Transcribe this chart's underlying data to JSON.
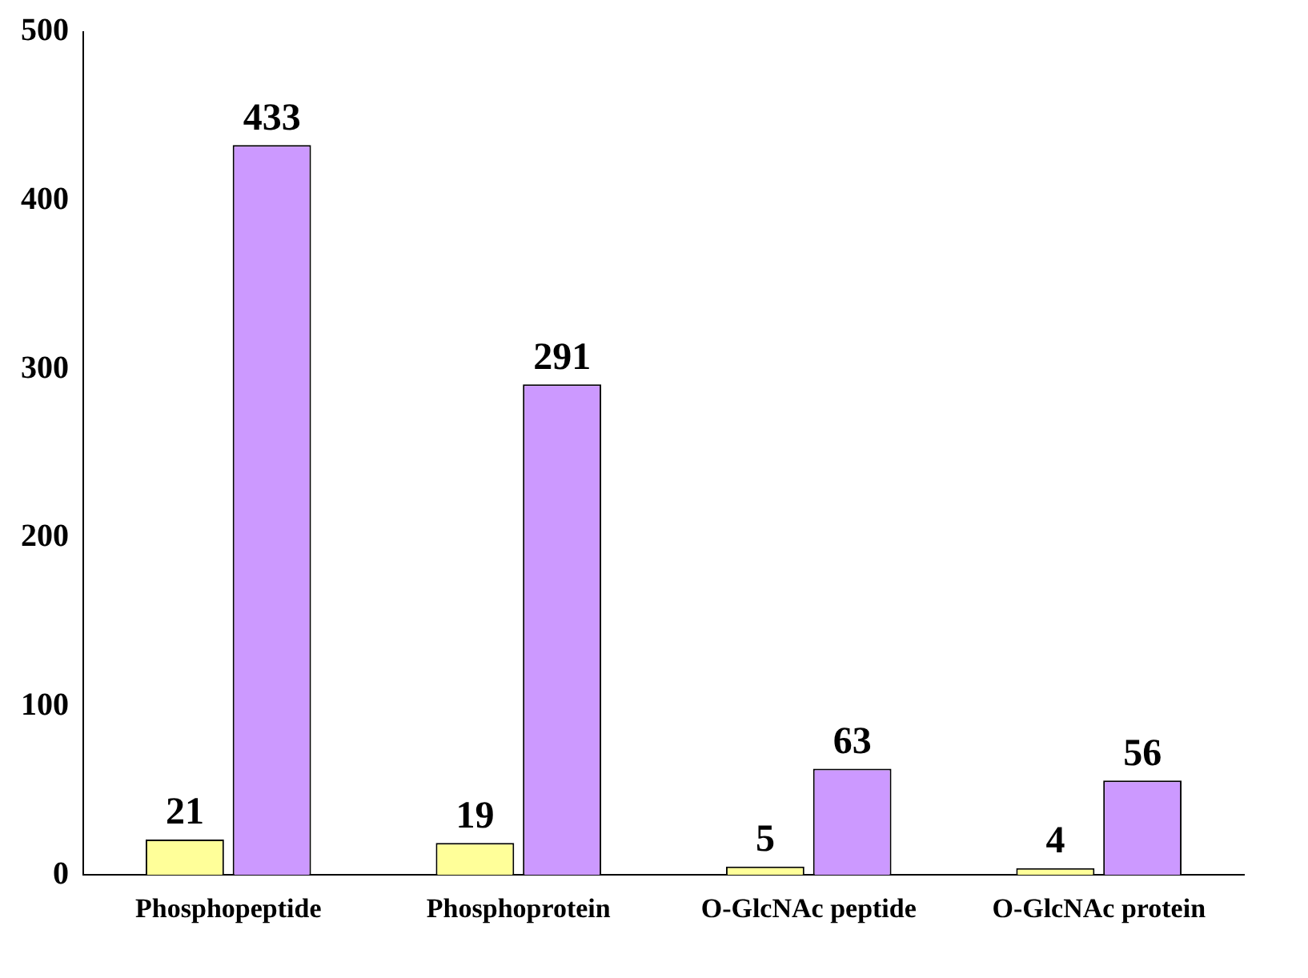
{
  "chart_data": {
    "type": "bar",
    "categories": [
      "Phosphopeptide",
      "Phosphoprotein",
      "O-GlcNAc peptide",
      "O-GlcNAc protein"
    ],
    "series": [
      {
        "color": "#ffff99",
        "values": [
          21,
          19,
          5,
          4
        ]
      },
      {
        "color": "#cc99ff",
        "values": [
          433,
          291,
          63,
          56
        ]
      }
    ],
    "ylim": [
      0,
      500
    ],
    "yticks": [
      0,
      100,
      200,
      300,
      400,
      500
    ],
    "grid": false,
    "legend": false,
    "data_labels": true
  }
}
